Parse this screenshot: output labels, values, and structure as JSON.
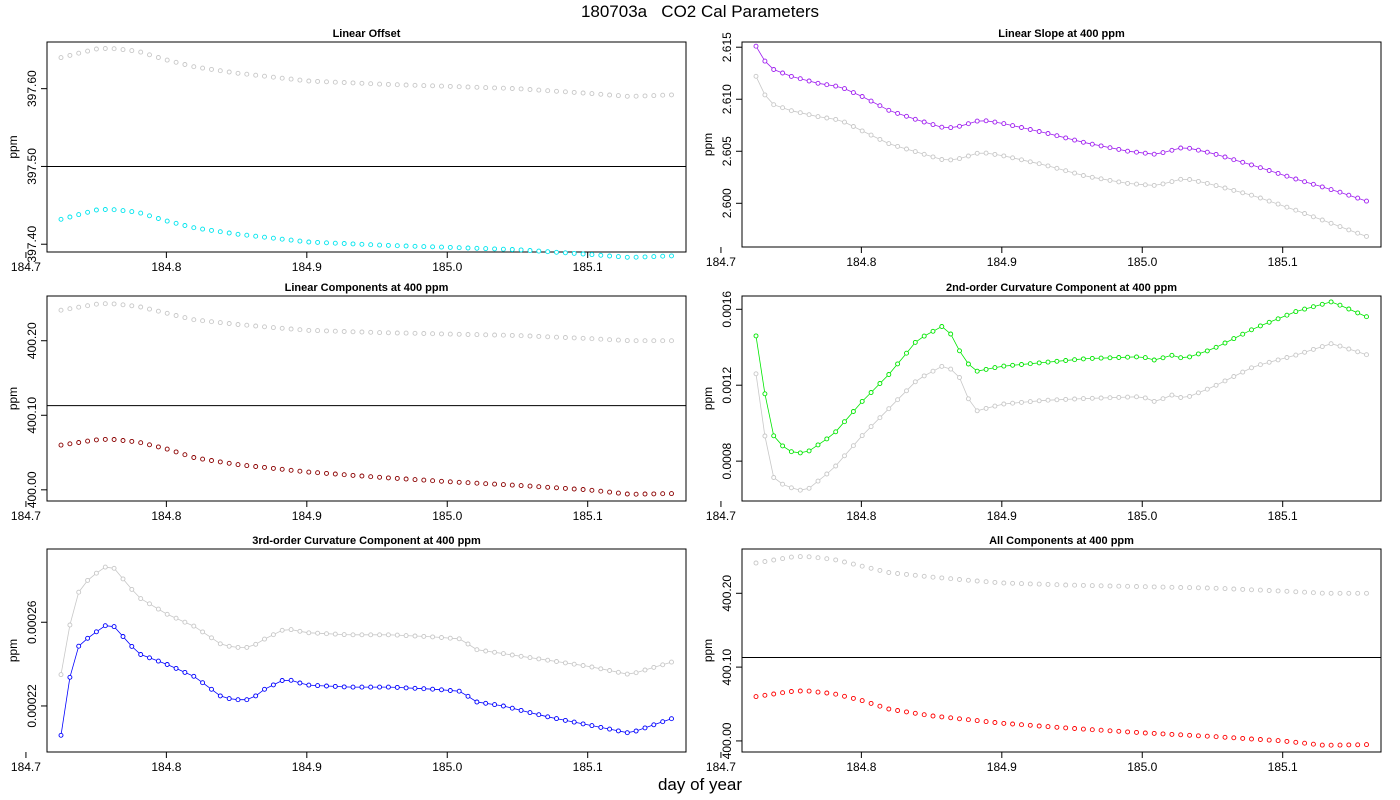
{
  "title": "180703a   CO2 Cal Parameters",
  "xlabel": "day of year",
  "colors": {
    "gray": "#c8c8c8",
    "cyan": "#00e5ee",
    "purple": "#a020f0",
    "darkred": "#8b0000",
    "green": "#00e600",
    "blue": "#0000ff",
    "red": "#ff0000"
  },
  "chart_data": [
    {
      "type": "scatter",
      "title": "Linear Offset",
      "ylabel": "ppm",
      "xlim": [
        184.715,
        185.17
      ],
      "ylim": [
        397.39,
        397.66
      ],
      "xticks": [
        "184.7",
        "184.8",
        "184.9",
        "185.0",
        "185.1"
      ],
      "yticks": [
        "397.40",
        "397.50",
        "397.60"
      ],
      "hline": 397.5,
      "series": [
        {
          "color": "gray",
          "x": [
            184.725,
            184.75,
            184.76,
            184.78,
            184.8,
            184.82,
            184.85,
            184.88,
            184.9,
            184.95,
            185.0,
            185.05,
            185.1,
            185.13,
            185.16
          ],
          "y": [
            397.64,
            397.651,
            397.652,
            397.648,
            397.637,
            397.628,
            397.62,
            397.614,
            397.61,
            397.606,
            397.603,
            397.6,
            397.594,
            397.59,
            397.592
          ]
        },
        {
          "color": "cyan",
          "x": [
            184.725,
            184.75,
            184.76,
            184.78,
            184.8,
            184.82,
            184.85,
            184.88,
            184.9,
            184.95,
            185.0,
            185.05,
            185.1,
            185.13,
            185.16
          ],
          "y": [
            397.432,
            397.444,
            397.445,
            397.441,
            397.43,
            397.421,
            397.413,
            397.407,
            397.403,
            397.399,
            397.396,
            397.393,
            397.387,
            397.383,
            397.385
          ]
        }
      ]
    },
    {
      "type": "line",
      "title": "Linear Slope at 400 ppm",
      "ylabel": "ppm",
      "xlim": [
        184.715,
        185.17
      ],
      "ylim": [
        2.5958,
        2.6155
      ],
      "xticks": [
        "184.7",
        "184.8",
        "184.9",
        "185.0",
        "185.1"
      ],
      "yticks": [
        "2.600",
        "2.605",
        "2.610",
        "2.615"
      ],
      "series": [
        {
          "color": "gray",
          "x": [
            184.725,
            184.73,
            184.735,
            184.75,
            184.77,
            184.785,
            184.8,
            184.82,
            184.84,
            184.86,
            184.87,
            184.885,
            184.9,
            184.93,
            184.96,
            184.99,
            185.01,
            185.03,
            185.05,
            185.08,
            185.11,
            185.14,
            185.16
          ],
          "y": [
            2.6122,
            2.6107,
            2.6096,
            2.6089,
            2.6083,
            2.608,
            2.607,
            2.6057,
            2.6049,
            2.6041,
            2.6043,
            2.6049,
            2.6046,
            2.6037,
            2.6026,
            2.6019,
            2.6017,
            2.6024,
            2.6018,
            2.6007,
            2.5993,
            2.5978,
            2.5968
          ]
        },
        {
          "color": "purple",
          "x": [
            184.725,
            184.73,
            184.735,
            184.75,
            184.77,
            184.785,
            184.8,
            184.82,
            184.84,
            184.86,
            184.87,
            184.885,
            184.9,
            184.93,
            184.96,
            184.99,
            185.01,
            185.03,
            185.05,
            185.08,
            185.11,
            185.14,
            185.16
          ],
          "y": [
            2.6151,
            2.6139,
            2.613,
            2.6122,
            2.6115,
            2.6112,
            2.6103,
            2.6089,
            2.608,
            2.6072,
            2.6074,
            2.608,
            2.6077,
            2.6068,
            2.6058,
            2.605,
            2.6047,
            2.6054,
            2.6048,
            2.6036,
            2.6023,
            2.6011,
            2.6002
          ]
        }
      ]
    },
    {
      "type": "scatter",
      "title": "Linear Components at 400 ppm",
      "ylabel": "ppm",
      "xlim": [
        184.715,
        185.17
      ],
      "ylim": [
        399.985,
        400.26
      ],
      "xticks": [
        "184.7",
        "184.8",
        "184.9",
        "185.0",
        "185.1"
      ],
      "yticks": [
        "400.00",
        "400.10",
        "400.20"
      ],
      "hline": 400.113,
      "series": [
        {
          "color": "gray",
          "x": [
            184.725,
            184.75,
            184.76,
            184.78,
            184.8,
            184.82,
            184.85,
            184.88,
            184.9,
            184.95,
            185.0,
            185.05,
            185.1,
            185.13,
            185.16
          ],
          "y": [
            400.241,
            400.249,
            400.25,
            400.246,
            400.237,
            400.228,
            400.222,
            400.217,
            400.214,
            400.211,
            400.209,
            400.207,
            400.203,
            400.2,
            400.2
          ]
        },
        {
          "color": "darkred",
          "x": [
            184.725,
            184.75,
            184.76,
            184.78,
            184.8,
            184.82,
            184.85,
            184.88,
            184.9,
            184.95,
            185.0,
            185.05,
            185.1,
            185.13,
            185.16
          ],
          "y": [
            400.06,
            400.067,
            400.068,
            400.064,
            400.055,
            400.043,
            400.034,
            400.028,
            400.024,
            400.017,
            400.011,
            400.006,
            400.0,
            399.994,
            399.995
          ]
        }
      ]
    },
    {
      "type": "line",
      "title": "2nd-order Curvature Component at 400 ppm",
      "ylabel": "ppm",
      "xlim": [
        184.715,
        185.17
      ],
      "ylim": [
        0.00059,
        0.00167
      ],
      "xticks": [
        "184.7",
        "184.8",
        "184.9",
        "185.0",
        "185.1"
      ],
      "yticks": [
        "0.0008",
        "0.0012",
        "0.0016"
      ],
      "series": [
        {
          "color": "gray",
          "x": [
            184.725,
            184.73,
            184.735,
            184.74,
            184.75,
            184.76,
            184.78,
            184.8,
            184.82,
            184.84,
            184.86,
            184.87,
            184.88,
            184.9,
            184.93,
            184.96,
            185.0,
            185.01,
            185.02,
            185.03,
            185.05,
            185.08,
            185.11,
            185.135,
            185.16
          ],
          "y": [
            0.00126,
            0.001,
            0.00074,
            0.00069,
            0.00066,
            0.00064,
            0.00076,
            0.00093,
            0.00108,
            0.00123,
            0.00131,
            0.00124,
            0.00106,
            0.0011,
            0.00112,
            0.00113,
            0.00114,
            0.00111,
            0.00115,
            0.00113,
            0.00119,
            0.0013,
            0.00136,
            0.00142,
            0.00136
          ]
        },
        {
          "color": "green",
          "x": [
            184.725,
            184.73,
            184.735,
            184.74,
            184.75,
            184.76,
            184.78,
            184.8,
            184.82,
            184.84,
            184.86,
            184.87,
            184.88,
            184.9,
            184.93,
            184.96,
            185.0,
            185.01,
            185.02,
            185.03,
            185.05,
            185.08,
            185.11,
            185.135,
            185.16
          ],
          "y": [
            0.00146,
            0.00122,
            0.00097,
            0.0009,
            0.00085,
            0.00084,
            0.00094,
            0.00111,
            0.00126,
            0.00144,
            0.00152,
            0.00138,
            0.00127,
            0.0013,
            0.00132,
            0.00134,
            0.00135,
            0.00133,
            0.00136,
            0.00134,
            0.00139,
            0.0015,
            0.00159,
            0.00164,
            0.00156
          ]
        }
      ]
    },
    {
      "type": "line",
      "title": "3rd-order Curvature Component at 400 ppm",
      "ylabel": "ppm",
      "xlim": [
        184.715,
        185.17
      ],
      "ylim": [
        0.000198,
        0.000295
      ],
      "xticks": [
        "184.7",
        "184.8",
        "184.9",
        "185.0",
        "185.1"
      ],
      "yticks": [
        "0.00022",
        "0.00026"
      ],
      "series": [
        {
          "color": "gray",
          "x": [
            184.725,
            184.73,
            184.735,
            184.745,
            184.76,
            184.78,
            184.8,
            184.82,
            184.84,
            184.85,
            184.86,
            184.87,
            184.885,
            184.9,
            184.93,
            184.96,
            184.99,
            185.01,
            185.02,
            185.04,
            185.07,
            185.1,
            185.13,
            185.16
          ],
          "y": [
            0.000235,
            0.000254,
            0.000272,
            0.000281,
            0.000288,
            0.000272,
            0.000264,
            0.000258,
            0.000249,
            0.000248,
            0.000248,
            0.000252,
            0.000257,
            0.000255,
            0.000254,
            0.000254,
            0.000253,
            0.000252,
            0.000247,
            0.000245,
            0.000242,
            0.000239,
            0.000235,
            0.000241
          ]
        },
        {
          "color": "blue",
          "x": [
            184.725,
            184.73,
            184.735,
            184.745,
            184.76,
            184.78,
            184.8,
            184.82,
            184.84,
            184.85,
            184.86,
            184.87,
            184.885,
            184.9,
            184.93,
            184.96,
            184.99,
            185.01,
            185.02,
            185.04,
            185.07,
            185.1,
            185.13,
            185.16
          ],
          "y": [
            0.000206,
            0.000229,
            0.000247,
            0.000253,
            0.00026,
            0.000245,
            0.00024,
            0.000234,
            0.000224,
            0.000223,
            0.000223,
            0.000228,
            0.000233,
            0.00023,
            0.000229,
            0.000229,
            0.000228,
            0.000227,
            0.000222,
            0.00022,
            0.000215,
            0.000211,
            0.000207,
            0.000214
          ]
        }
      ]
    },
    {
      "type": "scatter",
      "title": "All Components at 400 ppm",
      "ylabel": "ppm",
      "xlim": [
        184.715,
        185.17
      ],
      "ylim": [
        399.985,
        400.26
      ],
      "xticks": [
        "184.7",
        "184.8",
        "184.9",
        "185.0",
        "185.1"
      ],
      "yticks": [
        "400.00",
        "400.10",
        "400.20"
      ],
      "hline": 400.113,
      "series": [
        {
          "color": "gray",
          "x": [
            184.725,
            184.75,
            184.76,
            184.78,
            184.8,
            184.82,
            184.85,
            184.88,
            184.9,
            184.95,
            185.0,
            185.05,
            185.1,
            185.13,
            185.16
          ],
          "y": [
            400.241,
            400.249,
            400.25,
            400.246,
            400.237,
            400.228,
            400.222,
            400.217,
            400.214,
            400.211,
            400.209,
            400.207,
            400.203,
            400.2,
            400.2
          ]
        },
        {
          "color": "red",
          "x": [
            184.725,
            184.75,
            184.76,
            184.78,
            184.8,
            184.82,
            184.85,
            184.88,
            184.9,
            184.95,
            185.0,
            185.05,
            185.1,
            185.13,
            185.16
          ],
          "y": [
            400.06,
            400.067,
            400.068,
            400.064,
            400.055,
            400.043,
            400.034,
            400.028,
            400.024,
            400.017,
            400.011,
            400.006,
            400.0,
            399.994,
            399.995
          ]
        }
      ]
    }
  ]
}
